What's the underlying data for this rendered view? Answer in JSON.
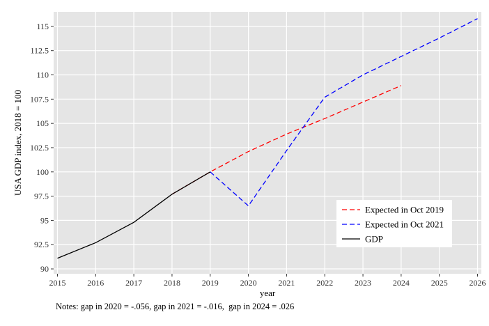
{
  "chart_data": {
    "type": "line",
    "xlabel": "year",
    "ylabel": "USA GDP index, 2018 = 100",
    "xlim": [
      2014.9,
      2026.1
    ],
    "ylim": [
      89.5,
      116.5
    ],
    "x_ticks": [
      2015,
      2016,
      2017,
      2018,
      2019,
      2020,
      2021,
      2022,
      2023,
      2024,
      2025,
      2026
    ],
    "y_ticks": [
      90,
      92.5,
      95,
      97.5,
      100,
      102.5,
      105,
      107.5,
      110,
      112.5,
      115
    ],
    "y_tick_labels": [
      "90",
      "92.5",
      "95",
      "97.5",
      "100",
      "102.5",
      "105",
      "107.5",
      "110",
      "112.5",
      "115"
    ],
    "grid": true,
    "legend_position": "bottom-right",
    "series": [
      {
        "name": "Expected in Oct 2019",
        "color": "#ff0000",
        "dash": "dashed",
        "x": [
          2018,
          2019,
          2020,
          2021,
          2022,
          2023,
          2024
        ],
        "y": [
          97.7,
          100.0,
          102.1,
          103.9,
          105.5,
          107.2,
          108.9
        ]
      },
      {
        "name": "Expected in Oct 2021",
        "color": "#0000ff",
        "dash": "dashed",
        "x": [
          2019,
          2020,
          2021,
          2022,
          2023,
          2024,
          2025,
          2026
        ],
        "y": [
          100.0,
          96.5,
          102.2,
          107.7,
          110.0,
          111.9,
          113.8,
          115.8
        ]
      },
      {
        "name": "GDP",
        "color": "#000000",
        "dash": "solid",
        "x": [
          2015,
          2016,
          2017,
          2018,
          2019
        ],
        "y": [
          91.1,
          92.7,
          94.8,
          97.7,
          100.0
        ]
      }
    ],
    "notes": "Notes: gap in 2020 = -.056, gap in 2021 = -.016,  gap in 2024 = .026"
  }
}
